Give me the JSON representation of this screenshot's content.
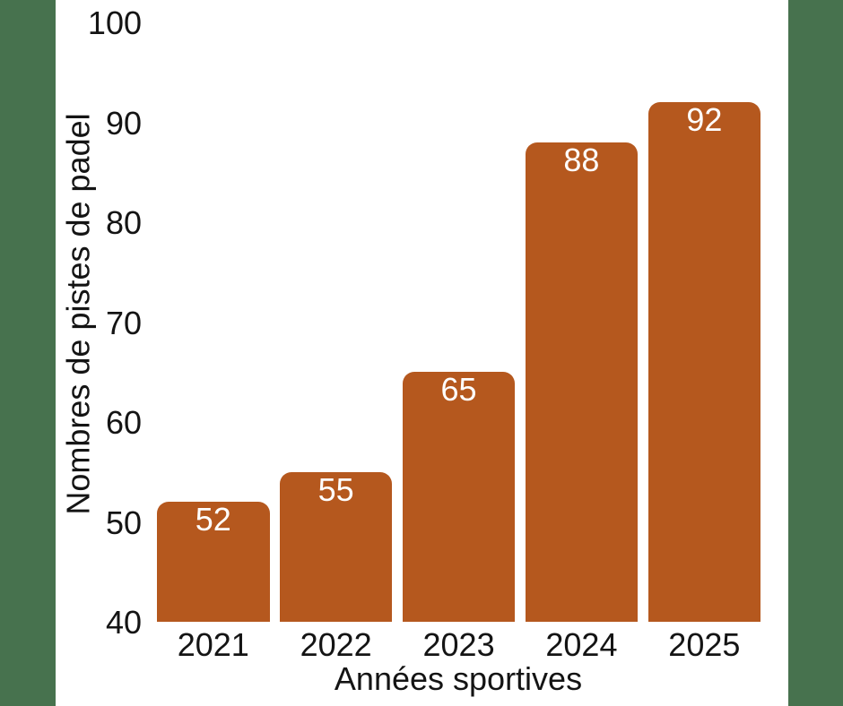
{
  "colors": {
    "background": "#ffffff",
    "side_band": "#47724e",
    "bar": "#b5581e",
    "value_label": "#ffffff",
    "text": "#141414"
  },
  "chart_data": {
    "type": "bar",
    "categories": [
      "2021",
      "2022",
      "2023",
      "2024",
      "2025"
    ],
    "values": [
      52,
      55,
      65,
      88,
      92
    ],
    "value_labels": [
      "52",
      "55",
      "65",
      "88",
      "92"
    ],
    "title": "",
    "xlabel": "Années sportives",
    "ylabel": "Nombres de pistes de padel",
    "ylim": [
      40,
      100
    ],
    "yticks": [
      40,
      50,
      60,
      70,
      80,
      90,
      100
    ],
    "grid": false,
    "legend": false,
    "bar_labels_inside_top": true
  }
}
